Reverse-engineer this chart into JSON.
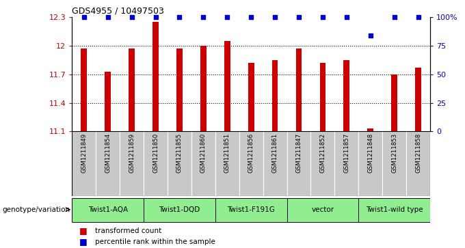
{
  "title": "GDS4955 / 10497503",
  "samples": [
    "GSM1211849",
    "GSM1211854",
    "GSM1211859",
    "GSM1211850",
    "GSM1211855",
    "GSM1211860",
    "GSM1211851",
    "GSM1211856",
    "GSM1211861",
    "GSM1211847",
    "GSM1211852",
    "GSM1211857",
    "GSM1211848",
    "GSM1211853",
    "GSM1211858"
  ],
  "bar_values": [
    11.97,
    11.73,
    11.97,
    12.25,
    11.97,
    12.0,
    12.05,
    11.82,
    11.85,
    11.97,
    11.82,
    11.85,
    11.13,
    11.7,
    11.77
  ],
  "percentile_values": [
    100,
    100,
    100,
    100,
    100,
    100,
    100,
    100,
    100,
    100,
    100,
    100,
    84,
    100,
    100
  ],
  "bar_bottom": 11.1,
  "ylim_left": [
    11.1,
    12.3
  ],
  "ylim_right": [
    0,
    100
  ],
  "yticks_left": [
    11.1,
    11.4,
    11.7,
    12.0,
    12.3
  ],
  "yticks_right": [
    0,
    25,
    50,
    75,
    100
  ],
  "ytick_labels_left": [
    "11.1",
    "11.4",
    "11.7",
    "12",
    "12.3"
  ],
  "ytick_labels_right": [
    "0",
    "25",
    "50",
    "75",
    "100%"
  ],
  "groups": [
    {
      "label": "Twist1-AQA",
      "indices": [
        0,
        1,
        2
      ]
    },
    {
      "label": "Twist1-DQD",
      "indices": [
        3,
        4,
        5
      ]
    },
    {
      "label": "Twist1-F191G",
      "indices": [
        6,
        7,
        8
      ]
    },
    {
      "label": "vector",
      "indices": [
        9,
        10,
        11
      ]
    },
    {
      "label": "Twist1-wild type",
      "indices": [
        12,
        13,
        14
      ]
    }
  ],
  "group_label_prefix": "genotype/variation",
  "bar_color": "#cc0000",
  "percentile_color": "#0000cc",
  "bg_color": "#ffffff",
  "sample_bg_color": "#c8c8c8",
  "group_box_color": "#90ee90",
  "legend_bar_label": "transformed count",
  "legend_pct_label": "percentile rank within the sample",
  "left_tick_color": "#cc0000",
  "right_tick_color": "#0000cc",
  "dotted_gridlines": [
    12.0,
    11.7,
    11.4
  ],
  "bar_width": 0.25
}
